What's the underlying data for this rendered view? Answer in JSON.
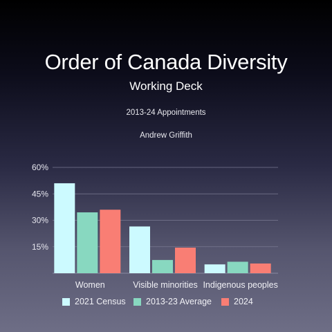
{
  "header": {
    "title": "Order of Canada Diversity",
    "subtitle": "Working Deck",
    "line1": "2013-24 Appointments",
    "line2": "Andrew Griffith"
  },
  "chart_data": {
    "type": "bar",
    "categories": [
      "Women",
      "Visible minorities",
      "Indigenous peoples"
    ],
    "series": [
      {
        "name": "2021 Census",
        "color": "#ccfaff",
        "values": [
          51,
          26.5,
          5
        ]
      },
      {
        "name": "2013-23 Average",
        "color": "#88d8c0",
        "values": [
          34.5,
          7.5,
          6.5
        ]
      },
      {
        "name": "2024",
        "color": "#f97e74",
        "values": [
          36,
          14.5,
          5.5
        ]
      }
    ],
    "ylim": [
      0,
      60
    ],
    "yticks": [
      0,
      15,
      30,
      45,
      60
    ],
    "ytick_labels": [
      "",
      "15%",
      "30%",
      "45%",
      "60%"
    ],
    "grid": true,
    "legend_position": "bottom"
  }
}
